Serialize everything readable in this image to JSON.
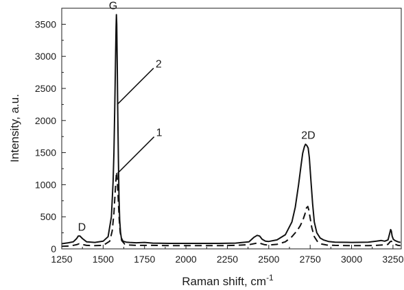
{
  "chart_data": {
    "type": "line",
    "xlabel": "Raman shift, cm",
    "xlabel_superscript": "-1",
    "ylabel": "Intensity, a.u.",
    "xlim": [
      1250,
      3300
    ],
    "ylim": [
      0,
      3750
    ],
    "xticks": [
      1250,
      1500,
      1750,
      2000,
      2250,
      2500,
      2750,
      3000,
      3250
    ],
    "yticks": [
      0,
      500,
      1000,
      1500,
      2000,
      2500,
      3000,
      3500
    ],
    "grid": false,
    "legend": "none",
    "series": [
      {
        "label": "2",
        "style": "solid",
        "x": [
          1250,
          1290,
          1320,
          1340,
          1350,
          1360,
          1375,
          1400,
          1450,
          1500,
          1530,
          1550,
          1560,
          1565,
          1570,
          1575,
          1578,
          1580,
          1582,
          1585,
          1588,
          1592,
          1596,
          1600,
          1605,
          1610,
          1620,
          1640,
          1660,
          1700,
          1750,
          1800,
          1900,
          2000,
          2100,
          2200,
          2300,
          2380,
          2410,
          2430,
          2445,
          2460,
          2480,
          2500,
          2550,
          2600,
          2640,
          2660,
          2680,
          2695,
          2705,
          2715,
          2722,
          2730,
          2738,
          2745,
          2755,
          2765,
          2775,
          2790,
          2810,
          2830,
          2860,
          2900,
          3000,
          3100,
          3150,
          3180,
          3200,
          3220,
          3230,
          3236,
          3240,
          3245,
          3252,
          3262,
          3280,
          3295
        ],
        "y": [
          80,
          95,
          110,
          160,
          200,
          200,
          160,
          110,
          100,
          120,
          190,
          500,
          1050,
          1500,
          2200,
          3000,
          3450,
          3650,
          3500,
          2900,
          2200,
          1400,
          800,
          450,
          260,
          170,
          120,
          105,
          100,
          95,
          100,
          90,
          85,
          85,
          85,
          85,
          90,
          110,
          180,
          210,
          200,
          150,
          120,
          115,
          140,
          220,
          420,
          650,
          1000,
          1300,
          1490,
          1590,
          1630,
          1610,
          1570,
          1420,
          1050,
          700,
          420,
          250,
          170,
          140,
          115,
          105,
          100,
          105,
          120,
          130,
          120,
          140,
          240,
          300,
          280,
          200,
          150,
          130,
          110,
          100
        ]
      },
      {
        "label": "1",
        "style": "dashed",
        "x": [
          1250,
          1300,
          1340,
          1355,
          1370,
          1400,
          1450,
          1500,
          1540,
          1555,
          1565,
          1572,
          1578,
          1581,
          1584,
          1588,
          1592,
          1597,
          1603,
          1612,
          1630,
          1660,
          1700,
          1800,
          1900,
          2000,
          2100,
          2200,
          2300,
          2380,
          2420,
          2440,
          2455,
          2475,
          2500,
          2550,
          2600,
          2640,
          2670,
          2690,
          2705,
          2718,
          2728,
          2736,
          2742,
          2750,
          2760,
          2775,
          2795,
          2820,
          2850,
          2900,
          3000,
          3100,
          3150,
          3180,
          3200,
          3220,
          3232,
          3240,
          3250,
          3265,
          3280,
          3295
        ],
        "y": [
          40,
          45,
          65,
          80,
          70,
          55,
          50,
          55,
          120,
          280,
          560,
          860,
          1100,
          1200,
          1150,
          950,
          720,
          460,
          260,
          130,
          75,
          60,
          55,
          55,
          50,
          50,
          50,
          50,
          55,
          65,
          85,
          95,
          80,
          65,
          60,
          70,
          110,
          190,
          280,
          360,
          440,
          540,
          640,
          660,
          600,
          480,
          330,
          190,
          110,
          75,
          60,
          55,
          50,
          50,
          55,
          60,
          65,
          70,
          110,
          120,
          100,
          70,
          55,
          50
        ]
      }
    ],
    "annotations": [
      {
        "text": "D",
        "x": 1355,
        "y": 200
      },
      {
        "text": "G",
        "x": 1581,
        "y": 3650
      },
      {
        "text": "2D",
        "x": 2722,
        "y": 1630
      },
      {
        "text": "2",
        "series": 0,
        "x": 1585,
        "y": 2250
      },
      {
        "text": "1",
        "series": 1,
        "x": 1588,
        "y": 1180
      }
    ]
  }
}
